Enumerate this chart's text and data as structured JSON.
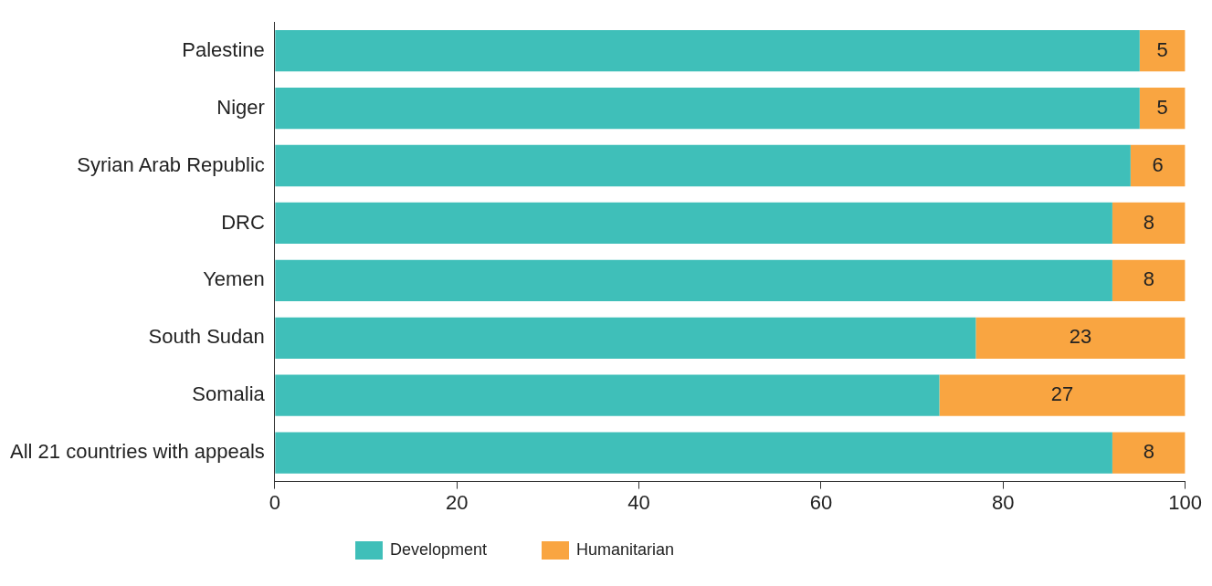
{
  "chart_data": {
    "type": "bar",
    "orientation": "horizontal",
    "stacked": true,
    "categories": [
      "Palestine",
      "Niger",
      "Syrian Arab Republic",
      "DRC",
      "Yemen",
      "South Sudan",
      "Somalia",
      "All 21 countries with appeals"
    ],
    "series": [
      {
        "name": "Development",
        "color": "#3fbfb9",
        "values": [
          95,
          95,
          94,
          92,
          92,
          77,
          73,
          92
        ]
      },
      {
        "name": "Humanitarian",
        "color": "#f9a541",
        "values": [
          5,
          5,
          6,
          8,
          8,
          23,
          27,
          8
        ],
        "value_labels": [
          "5",
          "5",
          "6",
          "8",
          "8",
          "23",
          "27",
          "8"
        ]
      }
    ],
    "xlim": [
      0,
      100
    ],
    "xticks": [
      0,
      20,
      40,
      60,
      80,
      100
    ],
    "grid": false,
    "legend": "bottom"
  }
}
